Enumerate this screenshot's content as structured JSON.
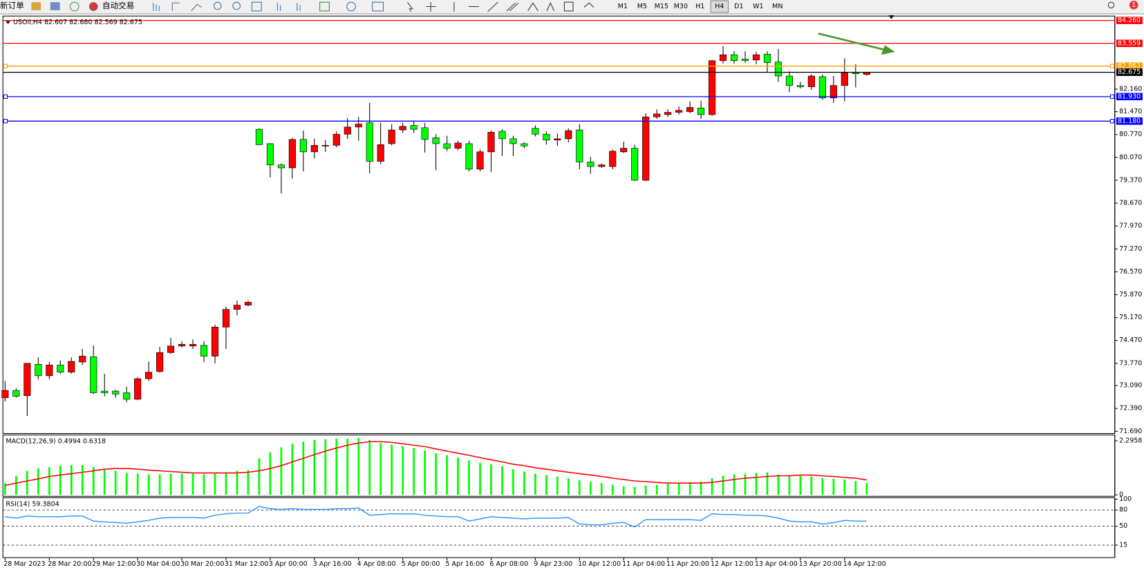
{
  "toolbar": {
    "buttons": [
      "新订单",
      "自动交易"
    ],
    "timeframes": [
      "M1",
      "M5",
      "M15",
      "M30",
      "H1",
      "H4",
      "D1",
      "W1",
      "MN"
    ],
    "active_timeframe": "H4",
    "badge": "1"
  },
  "chart_data": [
    {
      "type": "candlestick",
      "title": "USOil,H4  82.607 82.680 82.569 82.675",
      "categories": [
        "28 Mar 2023",
        null,
        null,
        null,
        "28 Mar 20:00",
        null,
        null,
        null,
        "29 Mar 12:00",
        null,
        null,
        null,
        "30 Mar 04:00",
        null,
        null,
        null,
        "30 Mar 20:00",
        null,
        null,
        null,
        "31 Mar 12:00",
        null,
        null,
        null,
        "3 Apr 00:00",
        null,
        null,
        null,
        "3 Apr 16:00",
        null,
        null,
        null,
        "4 Apr 08:00",
        null,
        null,
        null,
        "5 Apr 00:00",
        null,
        null,
        null,
        "5 Apr 16:00",
        null,
        null,
        null,
        "6 Apr 08:00",
        null,
        null,
        null,
        "9 Apr 23:00",
        null,
        null,
        null,
        "10 Apr 12:00",
        null,
        null,
        null,
        "11 Apr 04:00",
        null,
        null,
        null,
        "11 Apr 20:00",
        null,
        null,
        null,
        "12 Apr 12:00",
        null,
        null,
        null,
        "13 Apr 04:00",
        null,
        null,
        null,
        "13 Apr 20:00",
        null,
        null,
        null,
        "14 Apr 12:00",
        null,
        null
      ],
      "open": [
        72.72,
        72.94,
        72.78,
        73.74,
        73.39,
        73.72,
        73.5,
        73.81,
        73.97,
        72.92,
        72.92,
        72.87,
        72.67,
        73.3,
        73.52,
        74.1,
        74.3,
        74.3,
        74.32,
        73.99,
        74.88,
        75.42,
        75.55,
        80.93,
        80.49,
        79.84,
        79.75,
        80.62,
        80.24,
        80.42,
        80.44,
        80.78,
        81.0,
        81.13,
        79.95,
        80.49,
        80.91,
        81.05,
        80.98,
        80.67,
        80.49,
        80.35,
        80.49,
        79.71,
        80.24,
        80.87,
        80.64,
        80.49,
        80.96,
        80.78,
        80.6,
        80.64,
        80.91,
        79.93,
        79.79,
        79.79,
        80.24,
        80.35,
        79.37,
        81.31,
        81.38,
        81.45,
        81.47,
        81.58,
        81.38,
        83.03,
        83.21,
        83.08,
        83.05,
        83.23,
        82.99,
        82.56,
        82.27,
        82.23,
        82.54,
        81.89,
        82.27,
        82.67,
        82.607
      ],
      "high": [
        73.23,
        73.01,
        73.77,
        73.95,
        73.81,
        73.86,
        73.95,
        74.21,
        74.32,
        73.45,
        72.96,
        73.05,
        73.34,
        73.83,
        74.28,
        74.55,
        74.44,
        74.5,
        74.44,
        74.95,
        75.51,
        75.69,
        75.69,
        80.96,
        80.51,
        79.88,
        80.67,
        80.89,
        80.64,
        80.6,
        80.87,
        81.27,
        81.31,
        81.74,
        81.13,
        81.09,
        81.13,
        81.2,
        81.13,
        80.78,
        80.73,
        80.58,
        80.58,
        80.31,
        80.89,
        80.93,
        80.73,
        80.53,
        81.05,
        80.87,
        80.8,
        80.96,
        81.09,
        80.09,
        79.88,
        80.31,
        80.55,
        80.46,
        81.42,
        81.54,
        81.54,
        81.63,
        81.78,
        81.8,
        83.05,
        83.48,
        83.32,
        83.32,
        83.3,
        83.32,
        83.39,
        82.7,
        82.38,
        82.61,
        82.61,
        82.56,
        83.1,
        82.92,
        82.68
      ],
      "low": [
        72.61,
        72.72,
        72.16,
        73.28,
        73.28,
        73.45,
        73.45,
        73.72,
        72.83,
        72.76,
        72.72,
        72.58,
        72.65,
        73.23,
        73.48,
        74.06,
        74.26,
        74.21,
        73.81,
        73.77,
        74.21,
        75.24,
        75.51,
        80.44,
        79.46,
        78.97,
        79.42,
        79.64,
        80.04,
        80.24,
        80.38,
        80.64,
        80.58,
        79.59,
        79.86,
        80.44,
        80.82,
        80.82,
        80.22,
        79.68,
        80.26,
        80.29,
        79.64,
        79.64,
        79.62,
        80.11,
        80.11,
        80.35,
        80.71,
        80.46,
        80.42,
        80.53,
        79.71,
        79.57,
        79.75,
        79.71,
        80.2,
        79.35,
        79.35,
        81.25,
        81.31,
        81.38,
        81.42,
        81.25,
        81.34,
        82.94,
        82.94,
        82.97,
        82.92,
        82.67,
        82.38,
        82.07,
        82.18,
        82.14,
        81.83,
        81.74,
        81.78,
        82.21,
        82.569
      ],
      "close": [
        72.94,
        72.76,
        73.77,
        73.39,
        73.72,
        73.5,
        73.83,
        73.99,
        72.87,
        72.87,
        72.83,
        72.67,
        73.3,
        73.5,
        74.1,
        74.3,
        74.35,
        74.35,
        73.99,
        74.88,
        75.42,
        75.55,
        75.64,
        80.46,
        79.84,
        79.75,
        80.62,
        80.24,
        80.44,
        80.44,
        80.78,
        81.0,
        81.09,
        79.95,
        80.46,
        80.91,
        81.02,
        80.93,
        80.62,
        80.49,
        80.35,
        80.51,
        79.71,
        80.24,
        80.84,
        80.64,
        80.49,
        80.42,
        80.78,
        80.6,
        80.64,
        80.89,
        79.93,
        79.79,
        79.84,
        80.26,
        80.35,
        79.37,
        81.31,
        81.4,
        81.45,
        81.51,
        81.6,
        81.38,
        83.03,
        83.21,
        83.03,
        83.03,
        83.21,
        82.97,
        82.56,
        82.27,
        82.23,
        82.56,
        81.89,
        82.27,
        82.65,
        82.63,
        82.675
      ],
      "up_color": "#ff0000",
      "down_color": "#00ff00",
      "ylim": [
        71.645,
        84.372
      ],
      "yticks": [
        {
          "value": 82.16,
          "label": "82.160"
        },
        {
          "value": 81.47,
          "label": "81.470"
        },
        {
          "value": 80.77,
          "label": "80.770"
        },
        {
          "value": 80.07,
          "label": "80.070"
        },
        {
          "value": 79.37,
          "label": "79.370"
        },
        {
          "value": 78.67,
          "label": "78.670"
        },
        {
          "value": 77.97,
          "label": "77.970"
        },
        {
          "value": 77.27,
          "label": "77.270"
        },
        {
          "value": 76.57,
          "label": "76.570"
        },
        {
          "value": 75.87,
          "label": "75.870"
        },
        {
          "value": 75.17,
          "label": "75.170"
        },
        {
          "value": 74.47,
          "label": "74.470"
        },
        {
          "value": 73.77,
          "label": "73.770"
        },
        {
          "value": 73.09,
          "label": "73.090"
        },
        {
          "value": 72.39,
          "label": "72.390"
        },
        {
          "value": 71.69,
          "label": "71.690"
        }
      ],
      "levels": [
        {
          "value": 84.26,
          "label": "84.260",
          "color": "#ff0000"
        },
        {
          "value": 83.559,
          "label": "83.559",
          "color": "#ff0000"
        },
        {
          "value": 82.863,
          "label": "82.863",
          "color": "#ff9900"
        },
        {
          "value": 81.93,
          "label": "81.930",
          "color": "#0000ff"
        },
        {
          "value": 81.18,
          "label": "81.180",
          "color": "#0000ff"
        }
      ],
      "current_price": {
        "value": 82.675,
        "label": "82.675",
        "color": "#000000"
      }
    },
    {
      "type": "macd",
      "title": "MACD(12,26,9) 0.4994 0.6318",
      "histogram": {
        "color": "#00ff00",
        "values": [
          0.5,
          0.81,
          1.02,
          1.12,
          1.18,
          1.24,
          1.27,
          1.27,
          1.18,
          1.09,
          1.02,
          0.93,
          0.9,
          0.87,
          0.87,
          0.9,
          0.9,
          0.9,
          0.87,
          0.9,
          0.96,
          1.02,
          1.05,
          1.55,
          1.8,
          2.02,
          2.17,
          2.26,
          2.33,
          2.36,
          2.39,
          2.39,
          2.42,
          2.33,
          2.2,
          2.14,
          2.08,
          1.99,
          1.89,
          1.77,
          1.68,
          1.58,
          1.46,
          1.36,
          1.3,
          1.21,
          1.09,
          0.99,
          0.9,
          0.84,
          0.78,
          0.71,
          0.62,
          0.56,
          0.5,
          0.43,
          0.37,
          0.34,
          0.4,
          0.43,
          0.47,
          0.5,
          0.53,
          0.56,
          0.71,
          0.81,
          0.87,
          0.9,
          0.93,
          0.96,
          0.87,
          0.84,
          0.81,
          0.78,
          0.71,
          0.68,
          0.65,
          0.59,
          0.4994
        ]
      },
      "signal": {
        "color": "#ff0000",
        "values": [
          0.4,
          0.5,
          0.59,
          0.68,
          0.78,
          0.84,
          0.9,
          0.96,
          1.02,
          1.09,
          1.12,
          1.12,
          1.09,
          1.05,
          1.02,
          0.99,
          0.96,
          0.93,
          0.93,
          0.93,
          0.93,
          0.93,
          0.96,
          1.02,
          1.12,
          1.24,
          1.4,
          1.55,
          1.71,
          1.86,
          1.99,
          2.11,
          2.2,
          2.26,
          2.26,
          2.23,
          2.17,
          2.11,
          2.05,
          1.95,
          1.86,
          1.77,
          1.68,
          1.58,
          1.49,
          1.4,
          1.3,
          1.24,
          1.15,
          1.09,
          1.02,
          0.96,
          0.9,
          0.84,
          0.78,
          0.71,
          0.65,
          0.59,
          0.56,
          0.53,
          0.5,
          0.5,
          0.5,
          0.5,
          0.53,
          0.59,
          0.65,
          0.71,
          0.74,
          0.78,
          0.81,
          0.81,
          0.84,
          0.84,
          0.81,
          0.78,
          0.74,
          0.71,
          0.6318
        ]
      },
      "ylim": [
        0,
        2.513
      ],
      "yticks": [
        2.2958,
        0
      ]
    },
    {
      "type": "rsi",
      "title": "RSI(14) 59.3804",
      "color": "#1e90ff",
      "values": [
        67.6,
        64.9,
        68.9,
        67.6,
        67.6,
        67.6,
        68.9,
        68.9,
        59.5,
        58.1,
        56.8,
        55.4,
        58.1,
        60.8,
        64.9,
        66.2,
        66.2,
        66.2,
        64.9,
        70.3,
        73.0,
        74.3,
        74.3,
        86.5,
        82.4,
        81.1,
        82.4,
        81.1,
        81.1,
        81.1,
        82.4,
        82.4,
        83.8,
        70.3,
        71.6,
        73.0,
        73.0,
        73.0,
        70.3,
        68.9,
        67.6,
        67.6,
        59.5,
        63.5,
        67.6,
        66.2,
        64.9,
        63.5,
        64.9,
        64.9,
        64.9,
        66.2,
        54.1,
        52.7,
        52.7,
        55.4,
        56.8,
        48.6,
        62.2,
        62.2,
        62.2,
        62.2,
        62.2,
        60.8,
        73.0,
        71.6,
        71.6,
        70.3,
        70.3,
        68.9,
        64.9,
        59.5,
        58.1,
        58.1,
        54.1,
        56.8,
        60.8,
        59.5,
        59.3804
      ],
      "ylim": [
        0,
        100
      ],
      "yticks": [
        100,
        80,
        50,
        15
      ]
    }
  ]
}
